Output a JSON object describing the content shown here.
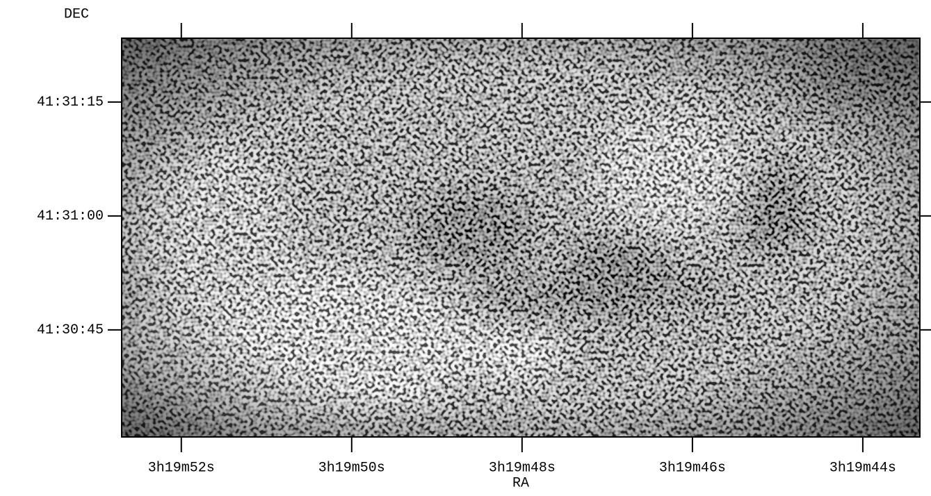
{
  "chart_data": {
    "type": "image",
    "xlabel": "RA",
    "ylabel": "DEC",
    "xlim": [
      11992.7,
      11983.33
    ],
    "ylim": [
      149430.9,
      149483.4
    ],
    "xticks": [
      {
        "value": 11992,
        "label": "3h19m52s"
      },
      {
        "value": 11990,
        "label": "3h19m50s"
      },
      {
        "value": 11988,
        "label": "3h19m48s"
      },
      {
        "value": 11986,
        "label": "3h19m46s"
      },
      {
        "value": 11984,
        "label": "3h19m44s"
      }
    ],
    "yticks": [
      {
        "value": 149475,
        "label": "41:31:15"
      },
      {
        "value": 149460,
        "label": "41:31:00"
      },
      {
        "value": 149445,
        "label": "41:30:45"
      }
    ]
  }
}
